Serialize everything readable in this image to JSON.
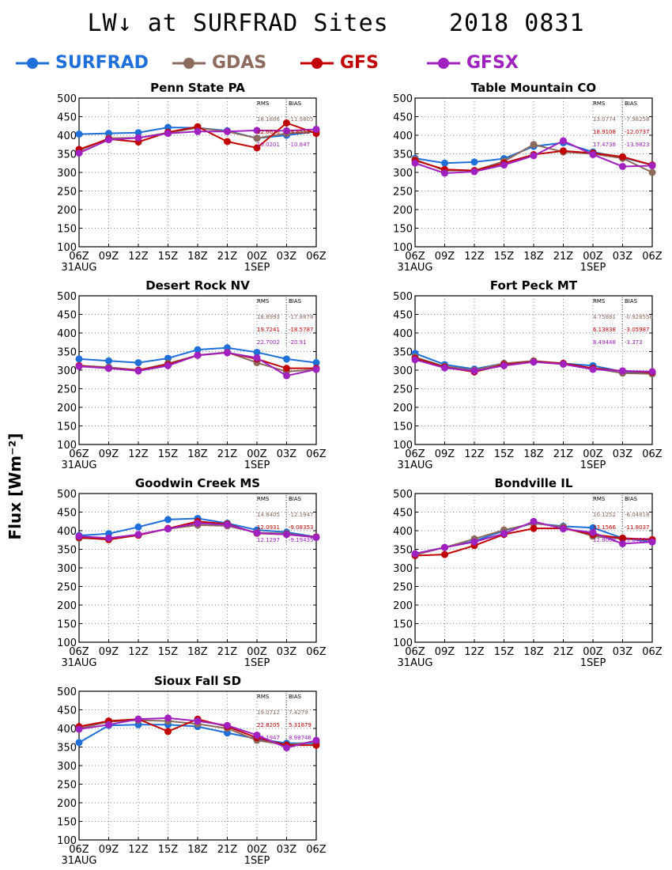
{
  "figure": {
    "title": "LW↓ at SURFRAD Sites    2018 0831",
    "ylabel": "Flux [Wm⁻²]"
  },
  "legend": [
    {
      "name": "SURFRAD",
      "color": "#1e6fd9"
    },
    {
      "name": "GDAS",
      "color": "#8c6a5d"
    },
    {
      "name": "GFS",
      "color": "#c00000"
    },
    {
      "name": "GFSX",
      "color": "#a020c0"
    }
  ],
  "stats_header": {
    "rms": "RMS",
    "bias": "BIAS"
  },
  "chart_data": [
    {
      "type": "line",
      "title": "Penn State PA",
      "categories": [
        "06Z",
        "09Z",
        "12Z",
        "15Z",
        "18Z",
        "21Z",
        "00Z",
        "03Z",
        "06Z"
      ],
      "date_labels": [
        "31AUG",
        "",
        "",
        "",
        "",
        "",
        "1SEP",
        "",
        ""
      ],
      "ylim": [
        100,
        500
      ],
      "yticks": [
        100,
        150,
        200,
        250,
        300,
        350,
        400,
        450,
        500
      ],
      "grid": true,
      "series": [
        {
          "name": "SURFRAD",
          "values": [
            403,
            405,
            407,
            421,
            420,
            412,
            392,
            400,
            410
          ]
        },
        {
          "name": "GDAS",
          "values": [
            358,
            392,
            393,
            407,
            420,
            410,
            392,
            405,
            410
          ]
        },
        {
          "name": "GFS",
          "values": [
            362,
            390,
            382,
            408,
            423,
            383,
            366,
            433,
            405
          ]
        },
        {
          "name": "GFSX",
          "values": [
            352,
            388,
            393,
            405,
            410,
            410,
            413,
            412,
            416
          ]
        }
      ],
      "stats": [
        {
          "series": "GDAS",
          "rms": "18.1886",
          "bias": "-11.9805"
        },
        {
          "series": "GFS",
          "rms": "22.6628",
          "bias": "-9.8552"
        },
        {
          "series": "GFSX",
          "rms": "19.0201",
          "bias": "-10.847"
        }
      ]
    },
    {
      "type": "line",
      "title": "Table Mountain CO",
      "categories": [
        "06Z",
        "09Z",
        "12Z",
        "15Z",
        "18Z",
        "21Z",
        "00Z",
        "03Z",
        "06Z"
      ],
      "date_labels": [
        "31AUG",
        "",
        "",
        "",
        "",
        "",
        "1SEP",
        "",
        ""
      ],
      "ylim": [
        100,
        500
      ],
      "yticks": [
        100,
        150,
        200,
        250,
        300,
        350,
        400,
        450,
        500
      ],
      "grid": true,
      "series": [
        {
          "name": "SURFRAD",
          "values": [
            338,
            325,
            328,
            337,
            370,
            380,
            355,
            340,
            320
          ]
        },
        {
          "name": "GDAS",
          "values": [
            335,
            305,
            305,
            330,
            375,
            355,
            350,
            338,
            300
          ]
        },
        {
          "name": "GFS",
          "values": [
            332,
            308,
            305,
            325,
            348,
            358,
            352,
            342,
            320
          ]
        },
        {
          "name": "GFSX",
          "values": [
            325,
            298,
            302,
            320,
            345,
            385,
            348,
            316,
            318
          ]
        }
      ],
      "stats": [
        {
          "series": "GDAS",
          "rms": "13.0774",
          "bias": "-7.98258"
        },
        {
          "series": "GFS",
          "rms": "18.9108",
          "bias": "-12.0737"
        },
        {
          "series": "GFSX",
          "rms": "17.4738",
          "bias": "-13.9823"
        }
      ]
    },
    {
      "type": "line",
      "title": "Desert Rock NV",
      "categories": [
        "06Z",
        "09Z",
        "12Z",
        "15Z",
        "18Z",
        "21Z",
        "00Z",
        "03Z",
        "06Z"
      ],
      "date_labels": [
        "31AUG",
        "",
        "",
        "",
        "",
        "",
        "1SEP",
        "",
        ""
      ],
      "ylim": [
        100,
        500
      ],
      "yticks": [
        100,
        150,
        200,
        250,
        300,
        350,
        400,
        450,
        500
      ],
      "grid": true,
      "series": [
        {
          "name": "SURFRAD",
          "values": [
            330,
            325,
            320,
            332,
            355,
            360,
            348,
            330,
            320
          ]
        },
        {
          "name": "GDAS",
          "values": [
            312,
            308,
            300,
            318,
            340,
            348,
            320,
            296,
            302
          ]
        },
        {
          "name": "GFS",
          "values": [
            312,
            305,
            300,
            315,
            340,
            347,
            330,
            305,
            305
          ]
        },
        {
          "name": "GFSX",
          "values": [
            310,
            305,
            298,
            312,
            340,
            347,
            333,
            285,
            302
          ]
        }
      ],
      "stats": [
        {
          "series": "GDAS",
          "rms": "18.8993",
          "bias": "-17.8878"
        },
        {
          "series": "GFS",
          "rms": "19.7241",
          "bias": "-18.5787"
        },
        {
          "series": "GFSX",
          "rms": "22.7002",
          "bias": "-20.91"
        }
      ]
    },
    {
      "type": "line",
      "title": "Fort Peck MT",
      "categories": [
        "06Z",
        "09Z",
        "12Z",
        "15Z",
        "18Z",
        "21Z",
        "00Z",
        "03Z",
        "06Z"
      ],
      "date_labels": [
        "31AUG",
        "",
        "",
        "",
        "",
        "",
        "1SEP",
        "",
        ""
      ],
      "ylim": [
        100,
        500
      ],
      "yticks": [
        100,
        150,
        200,
        250,
        300,
        350,
        400,
        450,
        500
      ],
      "grid": true,
      "series": [
        {
          "name": "SURFRAD",
          "values": [
            345,
            315,
            303,
            318,
            323,
            318,
            312,
            296,
            290
          ]
        },
        {
          "name": "GDAS",
          "values": [
            335,
            310,
            300,
            318,
            325,
            318,
            305,
            292,
            290
          ]
        },
        {
          "name": "GFS",
          "values": [
            332,
            308,
            295,
            315,
            323,
            318,
            305,
            298,
            294
          ]
        },
        {
          "name": "GFSX",
          "values": [
            328,
            306,
            298,
            312,
            322,
            316,
            302,
            298,
            296
          ]
        }
      ],
      "stats": [
        {
          "series": "GDAS",
          "rms": "4.75881",
          "bias": "-0.928558"
        },
        {
          "series": "GFS",
          "rms": "6.13838",
          "bias": "-3.05987"
        },
        {
          "series": "GFSX",
          "rms": "8.49448",
          "bias": "-3.373"
        }
      ]
    },
    {
      "type": "line",
      "title": "Goodwin Creek MS",
      "categories": [
        "06Z",
        "09Z",
        "12Z",
        "15Z",
        "18Z",
        "21Z",
        "00Z",
        "03Z",
        "06Z"
      ],
      "date_labels": [
        "31AUG",
        "",
        "",
        "",
        "",
        "",
        "1SEP",
        "",
        ""
      ],
      "ylim": [
        100,
        500
      ],
      "yticks": [
        100,
        150,
        200,
        250,
        300,
        350,
        400,
        450,
        500
      ],
      "grid": true,
      "series": [
        {
          "name": "SURFRAD",
          "values": [
            387,
            392,
            410,
            430,
            433,
            420,
            402,
            396,
            383
          ]
        },
        {
          "name": "GDAS",
          "values": [
            380,
            378,
            388,
            405,
            415,
            413,
            395,
            392,
            382
          ]
        },
        {
          "name": "GFS",
          "values": [
            382,
            376,
            388,
            406,
            425,
            418,
            393,
            390,
            383
          ]
        },
        {
          "name": "GFSX",
          "values": [
            385,
            380,
            390,
            405,
            420,
            416,
            394,
            390,
            382
          ]
        }
      ],
      "stats": [
        {
          "series": "GDAS",
          "rms": "14.8405",
          "bias": "-12.1947"
        },
        {
          "series": "GFS",
          "rms": "12.0931",
          "bias": "-9.08353"
        },
        {
          "series": "GFSX",
          "rms": "12.1297",
          "bias": "-9.19435"
        }
      ]
    },
    {
      "type": "line",
      "title": "Bondville IL",
      "categories": [
        "06Z",
        "09Z",
        "12Z",
        "15Z",
        "18Z",
        "21Z",
        "00Z",
        "03Z",
        "06Z"
      ],
      "date_labels": [
        "31AUG",
        "",
        "",
        "",
        "",
        "",
        "1SEP",
        "",
        ""
      ],
      "ylim": [
        100,
        500
      ],
      "yticks": [
        100,
        150,
        200,
        250,
        300,
        350,
        400,
        450,
        500
      ],
      "grid": true,
      "series": [
        {
          "name": "SURFRAD",
          "values": [
            338,
            355,
            372,
            400,
            420,
            412,
            408,
            380,
            370
          ]
        },
        {
          "name": "GDAS",
          "values": [
            335,
            355,
            378,
            402,
            420,
            410,
            385,
            378,
            376
          ]
        },
        {
          "name": "GFS",
          "values": [
            333,
            336,
            360,
            390,
            406,
            406,
            390,
            380,
            376
          ]
        },
        {
          "name": "GFSX",
          "values": [
            338,
            355,
            370,
            392,
            425,
            405,
            395,
            365,
            370
          ]
        }
      ],
      "stats": [
        {
          "series": "GDAS",
          "rms": "10.1252",
          "bias": "-6.04818"
        },
        {
          "series": "GFS",
          "rms": "13.1566",
          "bias": "-11.8037"
        },
        {
          "series": "GFSX",
          "rms": "12.8008",
          "bias": "-9.64573"
        }
      ]
    },
    {
      "type": "line",
      "title": "Sioux Fall SD",
      "categories": [
        "06Z",
        "09Z",
        "12Z",
        "15Z",
        "18Z",
        "21Z",
        "00Z",
        "03Z",
        "06Z"
      ],
      "date_labels": [
        "31AUG",
        "",
        "",
        "",
        "",
        "",
        "1SEP",
        "",
        ""
      ],
      "ylim": [
        100,
        500
      ],
      "yticks": [
        100,
        150,
        200,
        250,
        300,
        350,
        400,
        450,
        500
      ],
      "grid": true,
      "series": [
        {
          "name": "SURFRAD",
          "values": [
            362,
            408,
            410,
            410,
            405,
            388,
            372,
            360,
            360
          ]
        },
        {
          "name": "GDAS",
          "values": [
            400,
            418,
            422,
            420,
            412,
            400,
            368,
            355,
            365
          ]
        },
        {
          "name": "GFS",
          "values": [
            405,
            420,
            425,
            392,
            425,
            405,
            375,
            355,
            355
          ]
        },
        {
          "name": "GFSX",
          "values": [
            398,
            410,
            425,
            428,
            420,
            408,
            382,
            348,
            368
          ]
        }
      ],
      "stats": [
        {
          "series": "GDAS",
          "rms": "19.0712",
          "bias": "7.4279"
        },
        {
          "series": "GFS",
          "rms": "22.8205",
          "bias": "5.31879"
        },
        {
          "series": "GFSX",
          "rms": "20.1947",
          "bias": "8.98748"
        }
      ]
    }
  ]
}
